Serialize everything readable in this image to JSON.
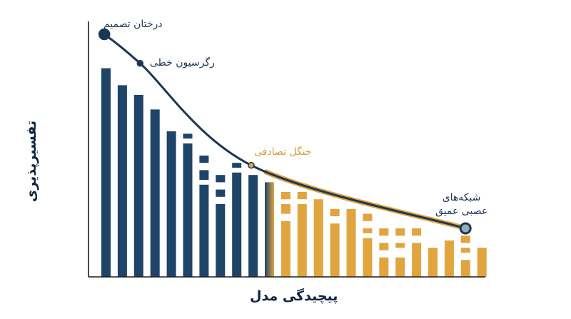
{
  "chart_data": {
    "type": "bar",
    "xlabel": "پیچیدگی مدل",
    "ylabel": "تفسیرپذیری",
    "colors": {
      "axis": "#1c1c1c",
      "navy": "#1e4468",
      "gold": "#e0a53e",
      "curve": "#1c3655"
    },
    "bars": [
      {
        "segments": [
          [
            0,
            0.86
          ]
        ],
        "color": "navy"
      },
      {
        "segments": [
          [
            0,
            0.79
          ]
        ],
        "color": "navy"
      },
      {
        "segments": [
          [
            0,
            0.75
          ]
        ],
        "color": "navy"
      },
      {
        "segments": [
          [
            0,
            0.69
          ]
        ],
        "color": "navy"
      },
      {
        "segments": [
          [
            0,
            0.6
          ]
        ],
        "color": "navy"
      },
      {
        "segments": [
          [
            0,
            0.55
          ],
          [
            0.57,
            0.59
          ]
        ],
        "color": "navy"
      },
      {
        "segments": [
          [
            0,
            0.38
          ],
          [
            0.4,
            0.44
          ],
          [
            0.47,
            0.5
          ]
        ],
        "color": "navy"
      },
      {
        "segments": [
          [
            0,
            0.3
          ],
          [
            0.33,
            0.36
          ],
          [
            0.39,
            0.42
          ]
        ],
        "color": "navy"
      },
      {
        "segments": [
          [
            0,
            0.43
          ],
          [
            0.45,
            0.47
          ]
        ],
        "color": "navy"
      },
      {
        "segments": [
          [
            0,
            0.42
          ]
        ],
        "color": "navy"
      },
      {
        "segments": [
          [
            0,
            0.39
          ]
        ],
        "color": "mixed"
      },
      {
        "segments": [
          [
            0,
            0.23
          ],
          [
            0.26,
            0.3
          ],
          [
            0.32,
            0.35
          ]
        ],
        "color": "gold"
      },
      {
        "segments": [
          [
            0,
            0.3
          ],
          [
            0.32,
            0.35
          ]
        ],
        "color": "gold"
      },
      {
        "segments": [
          [
            0,
            0.32
          ]
        ],
        "color": "gold"
      },
      {
        "segments": [
          [
            0,
            0.22
          ],
          [
            0.25,
            0.28
          ]
        ],
        "color": "gold"
      },
      {
        "segments": [
          [
            0,
            0.28
          ]
        ],
        "color": "gold"
      },
      {
        "segments": [
          [
            0,
            0.16
          ],
          [
            0.18,
            0.2
          ],
          [
            0.23,
            0.26
          ]
        ],
        "color": "gold"
      },
      {
        "segments": [
          [
            0,
            0.08
          ],
          [
            0.11,
            0.14
          ],
          [
            0.17,
            0.2
          ]
        ],
        "color": "gold"
      },
      {
        "segments": [
          [
            0,
            0.08
          ],
          [
            0.12,
            0.14
          ],
          [
            0.17,
            0.2
          ]
        ],
        "color": "gold"
      },
      {
        "segments": [
          [
            0,
            0.14
          ],
          [
            0.17,
            0.2
          ]
        ],
        "color": "gold"
      },
      {
        "segments": [
          [
            0,
            0.12
          ]
        ],
        "color": "gold"
      },
      {
        "segments": [
          [
            0,
            0.15
          ]
        ],
        "color": "gold"
      },
      {
        "segments": [
          [
            0,
            0.07
          ],
          [
            0.1,
            0.12
          ],
          [
            0.14,
            0.17
          ]
        ],
        "color": "gold"
      },
      {
        "segments": [
          [
            0,
            0.12
          ]
        ],
        "color": "gold"
      }
    ],
    "curve": {
      "points": [
        {
          "x": 0.04,
          "y": 1.0,
          "label": "درختان تصمیم",
          "color": "navy"
        },
        {
          "x": 0.13,
          "y": 0.88,
          "label": "رگرسیون خطی",
          "color": "navy"
        },
        {
          "x": 0.41,
          "y": 0.46,
          "label": "جنگل تصادفی",
          "color": "gold"
        },
        {
          "x": 0.95,
          "y": 0.2,
          "label": "شبکه‌های عصبی عمیق",
          "color": "navy"
        }
      ]
    }
  },
  "annotations": [
    {
      "text": "درختان تصمیم"
    },
    {
      "text": "رگرسیون خطی"
    },
    {
      "text": "جنگل تصادفی"
    },
    {
      "line1": "شبکه‌های",
      "line2": "عصبی عمیق"
    }
  ]
}
